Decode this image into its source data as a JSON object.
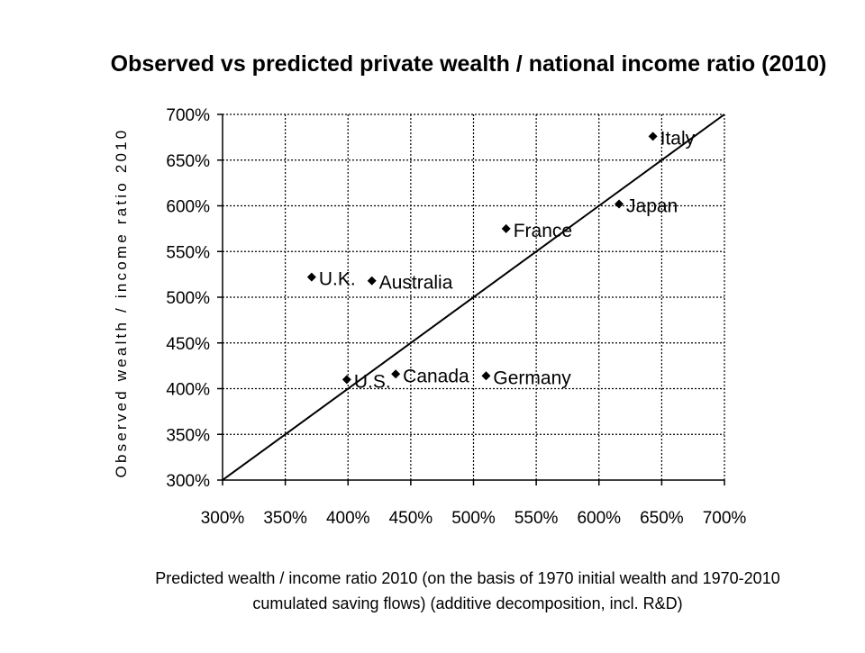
{
  "chart_data": {
    "type": "scatter",
    "title": "Observed vs predicted private wealth / national income ratio (2010)",
    "ylabel": "Observed wealth / income ratio 2010",
    "xlabel_lines": [
      "Predicted wealth / income ratio 2010 (on the basis of 1970 initial wealth and 1970-2010",
      "cumulated saving flows) (additive decomposition, incl. R&D)"
    ],
    "xlim": [
      300,
      700
    ],
    "ylim": [
      300,
      700
    ],
    "x_ticks": [
      "300%",
      "350%",
      "400%",
      "450%",
      "500%",
      "550%",
      "600%",
      "650%",
      "700%"
    ],
    "y_ticks": [
      "300%",
      "350%",
      "400%",
      "450%",
      "500%",
      "550%",
      "600%",
      "650%",
      "700%"
    ],
    "grid": true,
    "reference_line": "y = x",
    "marker": "diamond",
    "points": [
      {
        "label": "Italy",
        "x": 643,
        "y": 676
      },
      {
        "label": "Japan",
        "x": 616,
        "y": 602
      },
      {
        "label": "France",
        "x": 526,
        "y": 575
      },
      {
        "label": "U.K.",
        "x": 371,
        "y": 522
      },
      {
        "label": "Australia",
        "x": 419,
        "y": 518
      },
      {
        "label": "U.S.",
        "x": 399,
        "y": 410
      },
      {
        "label": "Canada",
        "x": 438,
        "y": 416
      },
      {
        "label": "Germany",
        "x": 510,
        "y": 414
      }
    ]
  }
}
